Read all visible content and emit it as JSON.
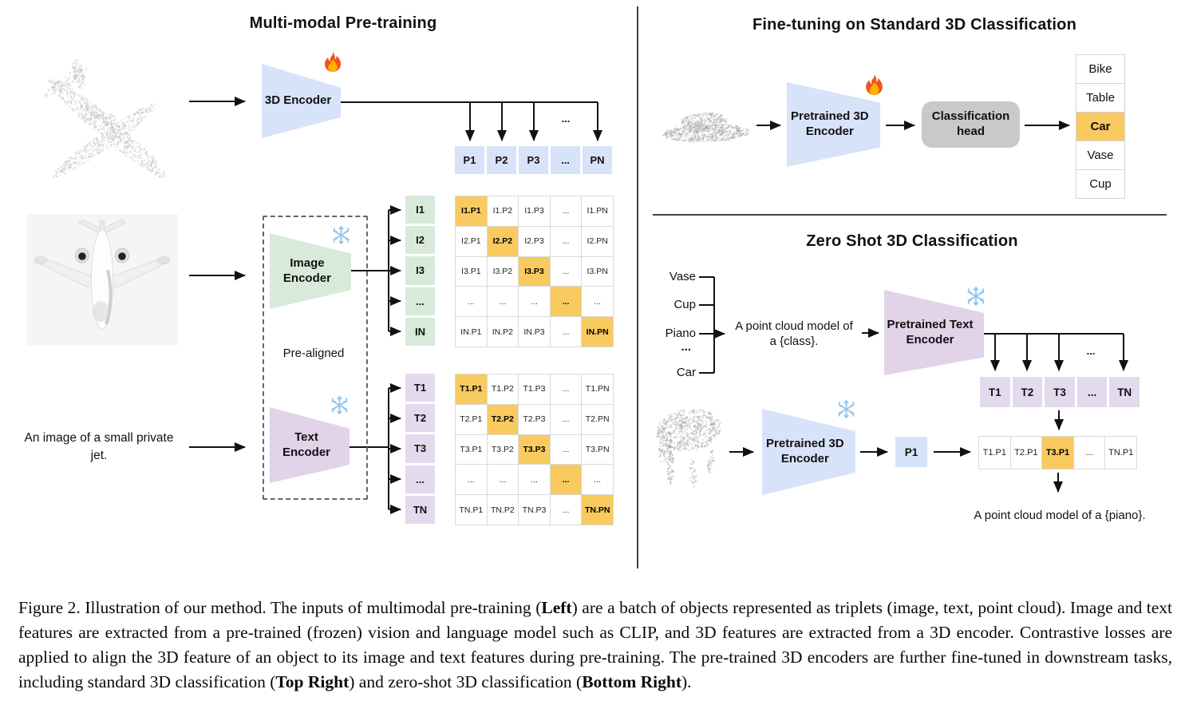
{
  "colors": {
    "blue": "#d7e3f8",
    "green": "#d8eada",
    "purple": "#e4daee",
    "purpletrap": "#e2d3e9",
    "orange": "#f8ca5f",
    "gray": "#c9c9c9",
    "gridline": "#d9d9d9",
    "line": "#111111"
  },
  "left": {
    "title": "Multi-modal Pre-training",
    "encoder_3d_label": "3D Encoder",
    "image_encoder_label": "Image Encoder",
    "text_encoder_label": "Text Encoder",
    "pre_aligned": "Pre-aligned",
    "input_caption": "An image of a small private jet.",
    "ellipsis": "...",
    "p_header": [
      "P1",
      "P2",
      "P3",
      "...",
      "PN"
    ],
    "i_labels": [
      "I1",
      "I2",
      "I3",
      "...",
      "IN"
    ],
    "t_labels": [
      "T1",
      "T2",
      "T3",
      "...",
      "TN"
    ],
    "i_matrix": [
      [
        "I1.P1",
        "I1.P2",
        "I1.P3",
        "...",
        "I1.PN"
      ],
      [
        "I2.P1",
        "I2.P2",
        "I2.P3",
        "...",
        "I2.PN"
      ],
      [
        "I3.P1",
        "I3.P2",
        "I3.P3",
        "...",
        "I3.PN"
      ],
      [
        "...",
        "...",
        "...",
        "...",
        "..."
      ],
      [
        "IN.P1",
        "IN.P2",
        "IN.P3",
        "...",
        "IN.PN"
      ]
    ],
    "t_matrix": [
      [
        "T1.P1",
        "T1.P2",
        "T1.P3",
        "...",
        "T1.PN"
      ],
      [
        "T2.P1",
        "T2.P2",
        "T2.P3",
        "...",
        "T2.PN"
      ],
      [
        "T3.P1",
        "T3.P2",
        "T3.P3",
        "...",
        "T3.PN"
      ],
      [
        "...",
        "...",
        "...",
        "...",
        "..."
      ],
      [
        "TN.P1",
        "TN.P2",
        "TN.P3",
        "...",
        "TN.PN"
      ]
    ],
    "point_cloud_object": "airplane",
    "image_object": "small private jet photo"
  },
  "right_top": {
    "title": "Fine-tuning on Standard 3D Classification",
    "encoder_label": "Pretrained 3D Encoder",
    "head_label": "Classification head",
    "classes": [
      "Bike",
      "Table",
      "Car",
      "Vase",
      "Cup"
    ],
    "highlighted_class": "Car",
    "point_cloud_object": "car"
  },
  "right_bottom": {
    "title": "Zero Shot 3D Classification",
    "candidate_classes": [
      "Vase",
      "Cup",
      "Piano",
      "...",
      "Car"
    ],
    "prompt_line1": "A point cloud model of",
    "prompt_line2": "a {class}.",
    "text_encoder_label": "Pretrained Text Encoder",
    "encoder_label": "Pretrained 3D Encoder",
    "t_row": [
      "T1",
      "T2",
      "T3",
      "...",
      "TN"
    ],
    "ellipsis": "...",
    "p_cell": "P1",
    "similarity_row": [
      "T1.P1",
      "T2.P1",
      "T3.P1",
      "...",
      "TN.P1"
    ],
    "highlighted_similarity": "T3.P1",
    "output_text": "A point cloud model of a {piano}.",
    "point_cloud_object": "piano"
  },
  "icons": {
    "trainable": "fire-icon",
    "frozen": "snowflake-icon"
  },
  "caption": {
    "segments": [
      {
        "text": "Figure 2. Illustration of our method.  The inputs of multimodal pre-training (",
        "bold": false
      },
      {
        "text": "Left",
        "bold": true
      },
      {
        "text": ") are a batch of objects represented as triplets (image, text, point cloud).  Image and text features are extracted from a pre-trained (frozen) vision and language model such as CLIP, and 3D features are extracted from a 3D encoder.  Contrastive losses are applied to align the 3D feature of an object to its image and text features during pre-training.  The pre-trained 3D encoders are further fine-tuned in downstream tasks, including standard 3D classification (",
        "bold": false
      },
      {
        "text": "Top Right",
        "bold": true
      },
      {
        "text": ") and zero-shot 3D classification (",
        "bold": false
      },
      {
        "text": "Bottom Right",
        "bold": true
      },
      {
        "text": ").",
        "bold": false
      }
    ]
  }
}
